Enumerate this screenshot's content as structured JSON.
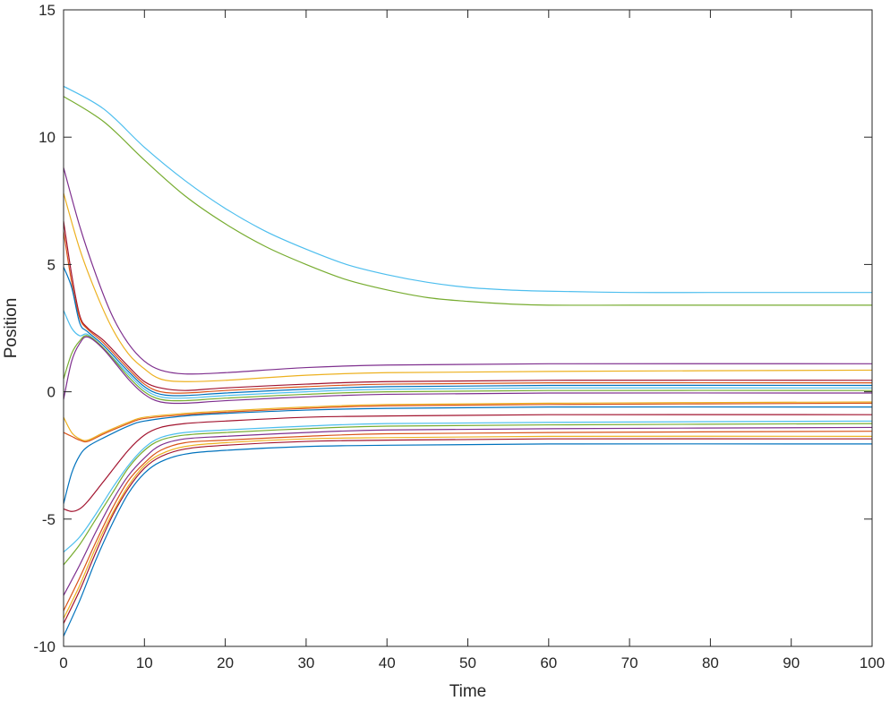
{
  "chart_data": {
    "type": "line",
    "xlabel": "Time",
    "ylabel": "Position",
    "xlim": [
      0,
      100
    ],
    "ylim": [
      -10,
      15
    ],
    "xticks": [
      0,
      10,
      20,
      30,
      40,
      50,
      60,
      70,
      80,
      90,
      100
    ],
    "yticks": [
      -10,
      -5,
      0,
      5,
      10,
      15
    ],
    "grid": false,
    "legend": "none",
    "series": [
      {
        "color": "#4DBEEE",
        "x": [
          0,
          5,
          10,
          15,
          20,
          25,
          30,
          35,
          40,
          45,
          50,
          55,
          60,
          70,
          80,
          90,
          100
        ],
        "y": [
          12.0,
          11.1,
          9.6,
          8.3,
          7.2,
          6.3,
          5.6,
          5.0,
          4.6,
          4.3,
          4.1,
          4.0,
          3.95,
          3.9,
          3.9,
          3.9,
          3.9
        ]
      },
      {
        "color": "#77AC30",
        "x": [
          0,
          5,
          10,
          15,
          20,
          25,
          30,
          35,
          40,
          45,
          50,
          55,
          60,
          70,
          80,
          90,
          100
        ],
        "y": [
          11.6,
          10.6,
          9.1,
          7.7,
          6.6,
          5.7,
          5.0,
          4.4,
          4.0,
          3.7,
          3.55,
          3.45,
          3.4,
          3.4,
          3.4,
          3.4,
          3.4
        ]
      },
      {
        "color": "#7E2F8E",
        "x": [
          0,
          2,
          4,
          6,
          8,
          10,
          12,
          15,
          20,
          30,
          40,
          60,
          100
        ],
        "y": [
          8.8,
          6.5,
          4.6,
          3.0,
          1.9,
          1.2,
          0.85,
          0.7,
          0.75,
          0.95,
          1.05,
          1.1,
          1.1
        ]
      },
      {
        "color": "#EDB120",
        "x": [
          0,
          2,
          4,
          6,
          8,
          10,
          12,
          15,
          20,
          30,
          40,
          60,
          100
        ],
        "y": [
          7.8,
          5.6,
          3.9,
          2.5,
          1.5,
          0.9,
          0.5,
          0.4,
          0.45,
          0.65,
          0.75,
          0.8,
          0.85
        ]
      },
      {
        "color": "#A2142F",
        "x": [
          0,
          1,
          2,
          3,
          5,
          8,
          10,
          12,
          15,
          20,
          30,
          40,
          60,
          100
        ],
        "y": [
          6.7,
          4.6,
          3.0,
          2.5,
          2.0,
          1.0,
          0.4,
          0.15,
          0.05,
          0.15,
          0.3,
          0.4,
          0.45,
          0.45
        ]
      },
      {
        "color": "#D95319",
        "x": [
          0,
          1,
          2,
          3,
          5,
          8,
          10,
          12,
          15,
          20,
          30,
          40,
          60,
          100
        ],
        "y": [
          6.3,
          4.3,
          2.9,
          2.45,
          1.9,
          0.9,
          0.3,
          0.0,
          -0.05,
          0.05,
          0.2,
          0.3,
          0.35,
          0.35
        ]
      },
      {
        "color": "#0072BD",
        "x": [
          0,
          1,
          2,
          3,
          5,
          8,
          10,
          12,
          15,
          20,
          30,
          40,
          60,
          100
        ],
        "y": [
          4.9,
          4.1,
          2.7,
          2.35,
          1.8,
          0.8,
          0.2,
          -0.1,
          -0.15,
          -0.05,
          0.1,
          0.2,
          0.25,
          0.25
        ]
      },
      {
        "color": "#4DBEEE",
        "x": [
          0,
          1,
          2,
          3,
          5,
          8,
          10,
          12,
          15,
          20,
          30,
          40,
          60,
          100
        ],
        "y": [
          3.2,
          2.5,
          2.2,
          2.25,
          1.7,
          0.7,
          0.1,
          -0.2,
          -0.25,
          -0.15,
          0.0,
          0.1,
          0.15,
          0.15
        ]
      },
      {
        "color": "#77AC30",
        "x": [
          0,
          1,
          2,
          3,
          5,
          8,
          10,
          12,
          15,
          20,
          30,
          40,
          60,
          100
        ],
        "y": [
          0.5,
          1.5,
          2.0,
          2.2,
          1.7,
          0.6,
          0.0,
          -0.3,
          -0.35,
          -0.25,
          -0.1,
          0.0,
          0.05,
          0.05
        ]
      },
      {
        "color": "#7E2F8E",
        "x": [
          0,
          1,
          2,
          3,
          5,
          8,
          10,
          12,
          15,
          20,
          30,
          40,
          60,
          100
        ],
        "y": [
          -0.3,
          1.2,
          1.9,
          2.15,
          1.65,
          0.5,
          -0.1,
          -0.4,
          -0.45,
          -0.35,
          -0.2,
          -0.1,
          -0.05,
          -0.05
        ]
      },
      {
        "color": "#EDB120",
        "x": [
          0,
          1,
          2,
          3,
          5,
          8,
          10,
          15,
          20,
          30,
          40,
          60,
          100
        ],
        "y": [
          -1.0,
          -1.6,
          -1.85,
          -1.9,
          -1.6,
          -1.2,
          -1.0,
          -0.85,
          -0.75,
          -0.6,
          -0.5,
          -0.45,
          -0.4
        ]
      },
      {
        "color": "#D95319",
        "x": [
          0,
          1,
          2,
          3,
          5,
          8,
          10,
          15,
          20,
          30,
          40,
          60,
          100
        ],
        "y": [
          -1.6,
          -1.75,
          -1.9,
          -1.95,
          -1.65,
          -1.25,
          -1.05,
          -0.9,
          -0.8,
          -0.65,
          -0.55,
          -0.5,
          -0.45
        ]
      },
      {
        "color": "#0072BD",
        "x": [
          0,
          1,
          2,
          3,
          5,
          8,
          10,
          15,
          20,
          30,
          40,
          60,
          100
        ],
        "y": [
          -4.4,
          -3.2,
          -2.5,
          -2.15,
          -1.8,
          -1.35,
          -1.15,
          -0.95,
          -0.85,
          -0.72,
          -0.65,
          -0.6,
          -0.6
        ]
      },
      {
        "color": "#A2142F",
        "x": [
          0,
          1,
          2,
          3,
          5,
          8,
          10,
          12,
          15,
          20,
          30,
          40,
          60,
          100
        ],
        "y": [
          -4.6,
          -4.7,
          -4.6,
          -4.3,
          -3.5,
          -2.3,
          -1.7,
          -1.4,
          -1.25,
          -1.15,
          -1.0,
          -0.95,
          -0.9,
          -0.9
        ]
      },
      {
        "color": "#4DBEEE",
        "x": [
          0,
          2,
          4,
          6,
          8,
          10,
          12,
          15,
          20,
          30,
          40,
          60,
          100
        ],
        "y": [
          -6.3,
          -5.7,
          -4.8,
          -3.8,
          -2.9,
          -2.2,
          -1.8,
          -1.6,
          -1.5,
          -1.35,
          -1.25,
          -1.2,
          -1.15
        ]
      },
      {
        "color": "#77AC30",
        "x": [
          0,
          2,
          4,
          6,
          8,
          10,
          12,
          15,
          20,
          30,
          40,
          60,
          100
        ],
        "y": [
          -6.8,
          -6.0,
          -5.0,
          -4.0,
          -3.0,
          -2.3,
          -1.9,
          -1.7,
          -1.6,
          -1.45,
          -1.35,
          -1.3,
          -1.25
        ]
      },
      {
        "color": "#7E2F8E",
        "x": [
          0,
          2,
          4,
          6,
          8,
          10,
          12,
          15,
          20,
          30,
          40,
          60,
          100
        ],
        "y": [
          -8.0,
          -6.8,
          -5.5,
          -4.3,
          -3.3,
          -2.6,
          -2.1,
          -1.85,
          -1.75,
          -1.6,
          -1.5,
          -1.45,
          -1.4
        ]
      },
      {
        "color": "#D95319",
        "x": [
          0,
          2,
          4,
          6,
          8,
          10,
          12,
          15,
          20,
          30,
          40,
          60,
          100
        ],
        "y": [
          -8.6,
          -7.3,
          -5.9,
          -4.6,
          -3.5,
          -2.8,
          -2.3,
          -2.0,
          -1.9,
          -1.75,
          -1.65,
          -1.6,
          -1.55
        ]
      },
      {
        "color": "#EDB120",
        "x": [
          0,
          2,
          4,
          6,
          8,
          10,
          12,
          15,
          20,
          30,
          40,
          60,
          100
        ],
        "y": [
          -8.9,
          -7.6,
          -6.1,
          -4.8,
          -3.7,
          -2.9,
          -2.45,
          -2.15,
          -2.0,
          -1.85,
          -1.8,
          -1.75,
          -1.75
        ]
      },
      {
        "color": "#A2142F",
        "x": [
          0,
          2,
          4,
          6,
          8,
          10,
          12,
          15,
          20,
          30,
          40,
          60,
          100
        ],
        "y": [
          -9.1,
          -7.8,
          -6.3,
          -4.9,
          -3.8,
          -3.0,
          -2.55,
          -2.25,
          -2.1,
          -1.95,
          -1.9,
          -1.85,
          -1.85
        ]
      },
      {
        "color": "#0072BD",
        "x": [
          0,
          2,
          4,
          6,
          8,
          10,
          12,
          15,
          20,
          30,
          40,
          60,
          100
        ],
        "y": [
          -9.6,
          -8.2,
          -6.6,
          -5.2,
          -4.0,
          -3.2,
          -2.75,
          -2.45,
          -2.3,
          -2.15,
          -2.1,
          -2.05,
          -2.05
        ]
      }
    ]
  }
}
